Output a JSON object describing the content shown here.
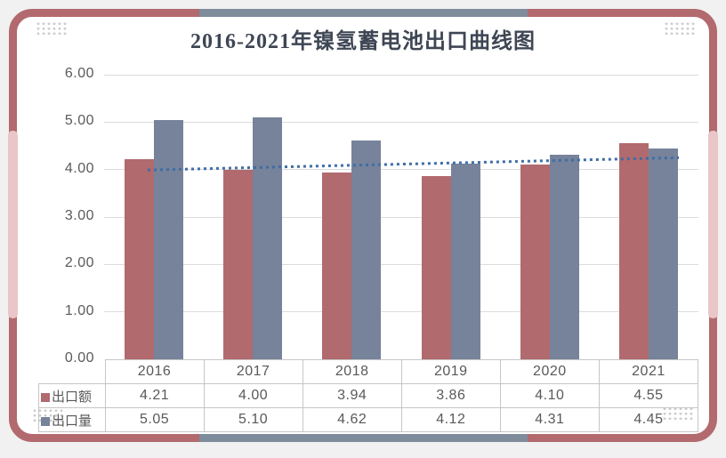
{
  "page": {
    "background": "#f1f1f1"
  },
  "card": {
    "border_color": "#b26a6e",
    "accent_pink": "#e9c6c7",
    "accent_gray": "#7e8c9c",
    "background": "#ffffff",
    "corner_dot_color": "#cccccc"
  },
  "chart_data": {
    "type": "bar",
    "title": "2016-2021年镍氢蓄电池出口曲线图",
    "categories": [
      "2016",
      "2017",
      "2018",
      "2019",
      "2020",
      "2021"
    ],
    "series": [
      {
        "name": "出口额",
        "color": "#b16a6e",
        "values": [
          4.21,
          4.0,
          3.94,
          3.86,
          4.1,
          4.55
        ]
      },
      {
        "name": "出口量",
        "color": "#76839a",
        "values": [
          5.05,
          5.1,
          4.62,
          4.12,
          4.31,
          4.45
        ]
      }
    ],
    "trendline": {
      "for_series": "出口额",
      "style": "dotted",
      "color": "#3f6da5",
      "start_value": 3.99,
      "end_value": 4.25
    },
    "ylim": [
      0,
      6
    ],
    "y_tick_step": 1,
    "y_ticks": [
      "6.00",
      "5.00",
      "4.00",
      "3.00",
      "2.00",
      "1.00",
      "0.00"
    ],
    "grid": true,
    "gridline_color": "#dcdcdc",
    "legend_position": "data-table-left",
    "data_table": true,
    "value_decimals": 2,
    "text_color": "#595959",
    "title_color": "#3e4654",
    "table_border_color": "#c6c6c6"
  }
}
